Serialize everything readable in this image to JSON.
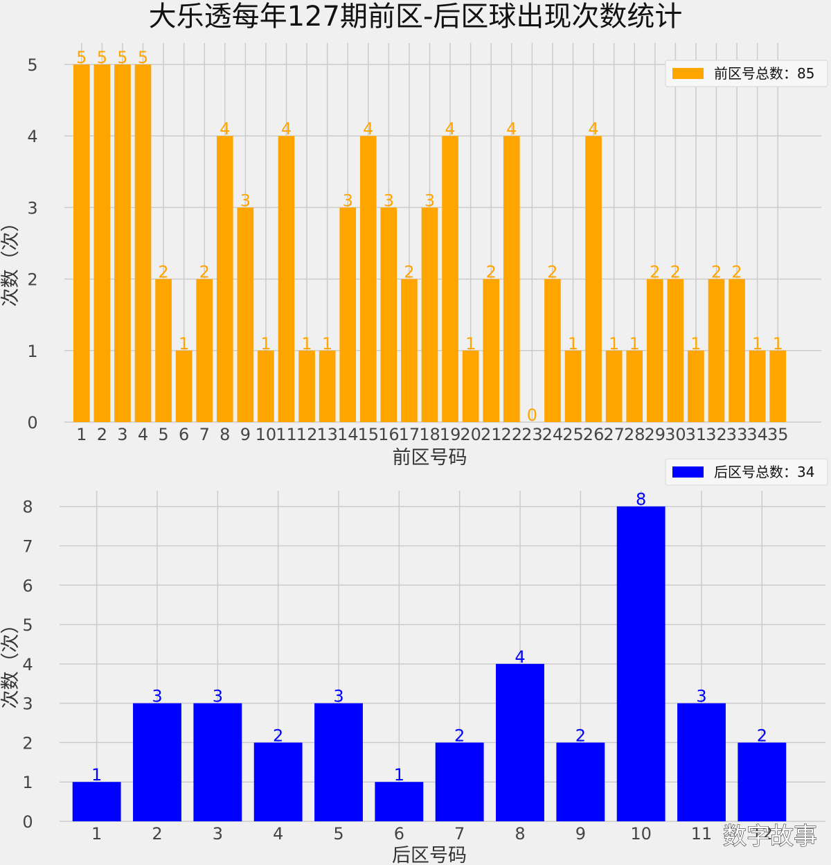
{
  "title": "大乐透每年127期前区-后区球出现次数统计",
  "watermark": "数字故事",
  "chart_data": [
    {
      "type": "bar",
      "xlabel": "前区号码",
      "ylabel": "次数（次）",
      "categories": [
        "1",
        "2",
        "3",
        "4",
        "5",
        "6",
        "7",
        "8",
        "9",
        "10",
        "11",
        "12",
        "13",
        "14",
        "15",
        "16",
        "17",
        "18",
        "19",
        "20",
        "21",
        "22",
        "23",
        "24",
        "25",
        "26",
        "27",
        "28",
        "29",
        "30",
        "31",
        "32",
        "33",
        "34",
        "35"
      ],
      "values": [
        5,
        5,
        5,
        5,
        2,
        1,
        2,
        4,
        3,
        1,
        4,
        1,
        1,
        3,
        4,
        3,
        2,
        3,
        4,
        1,
        2,
        4,
        0,
        2,
        1,
        4,
        1,
        1,
        2,
        2,
        1,
        2,
        2,
        1,
        1
      ],
      "ylim": [
        0,
        5.3
      ],
      "yticks": [
        0,
        1,
        2,
        3,
        4,
        5
      ],
      "color": "#ffa500",
      "legend": "前区号总数：85",
      "legend_position": "top-right",
      "grid": true
    },
    {
      "type": "bar",
      "xlabel": "后区号码",
      "ylabel": "次数（次）",
      "categories": [
        "1",
        "2",
        "3",
        "4",
        "5",
        "6",
        "7",
        "8",
        "9",
        "10",
        "11",
        "12"
      ],
      "values": [
        1,
        3,
        3,
        2,
        3,
        1,
        2,
        4,
        2,
        8,
        3,
        2
      ],
      "ylim": [
        0,
        8.4
      ],
      "yticks": [
        0,
        1,
        2,
        3,
        4,
        5,
        6,
        7,
        8
      ],
      "color": "#0000ff",
      "legend": "后区号总数：34",
      "legend_position": "top-right",
      "grid": true
    }
  ]
}
